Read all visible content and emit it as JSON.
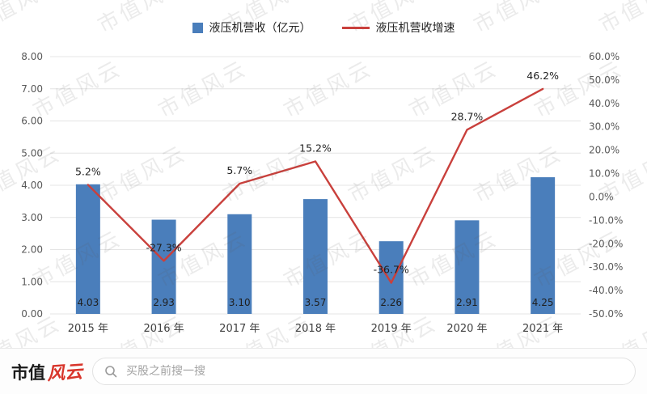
{
  "chart_data": {
    "type": "bar",
    "categories": [
      "2015 年",
      "2016 年",
      "2017 年",
      "2018 年",
      "2019 年",
      "2020 年",
      "2021 年"
    ],
    "series": [
      {
        "name": "液压机营收（亿元）",
        "type": "bar",
        "axis": "left",
        "values": [
          4.03,
          2.93,
          3.1,
          3.57,
          2.26,
          2.91,
          4.25
        ],
        "labels": [
          "4.03",
          "2.93",
          "3.10",
          "3.57",
          "2.26",
          "2.91",
          "4.25"
        ]
      },
      {
        "name": "液压机营收增速",
        "type": "line",
        "axis": "right",
        "values": [
          5.2,
          -27.3,
          5.7,
          15.2,
          -36.7,
          28.7,
          46.2
        ],
        "labels": [
          "5.2%",
          "-27.3%",
          "5.7%",
          "15.2%",
          "-36.7%",
          "28.7%",
          "46.2%"
        ]
      }
    ],
    "left_axis": {
      "min": 0,
      "max": 8,
      "ticks": [
        "8.00",
        "7.00",
        "6.00",
        "5.00",
        "4.00",
        "3.00",
        "2.00",
        "1.00",
        "0.00"
      ]
    },
    "right_axis": {
      "min": -50,
      "max": 60,
      "ticks": [
        "60.0%",
        "50.0%",
        "40.0%",
        "30.0%",
        "20.0%",
        "10.0%",
        "0.0%",
        "-10.0%",
        "-20.0%",
        "-30.0%",
        "-40.0%",
        "-50.0%"
      ]
    },
    "grid": true,
    "legend_position": "top"
  },
  "legend": {
    "bar_label": "液压机营收（亿元）",
    "line_label": "液压机营收增速"
  },
  "watermark": {
    "text": "市值风云"
  },
  "footer": {
    "logo_black": "市值",
    "logo_red": "风云",
    "search_placeholder": "买股之前搜一搜"
  },
  "colors": {
    "bar": "#4a7ebb",
    "line": "#c9403c",
    "grid": "#e4e4e4",
    "axis_text": "#595959",
    "label_text": "#1f1f1f"
  }
}
